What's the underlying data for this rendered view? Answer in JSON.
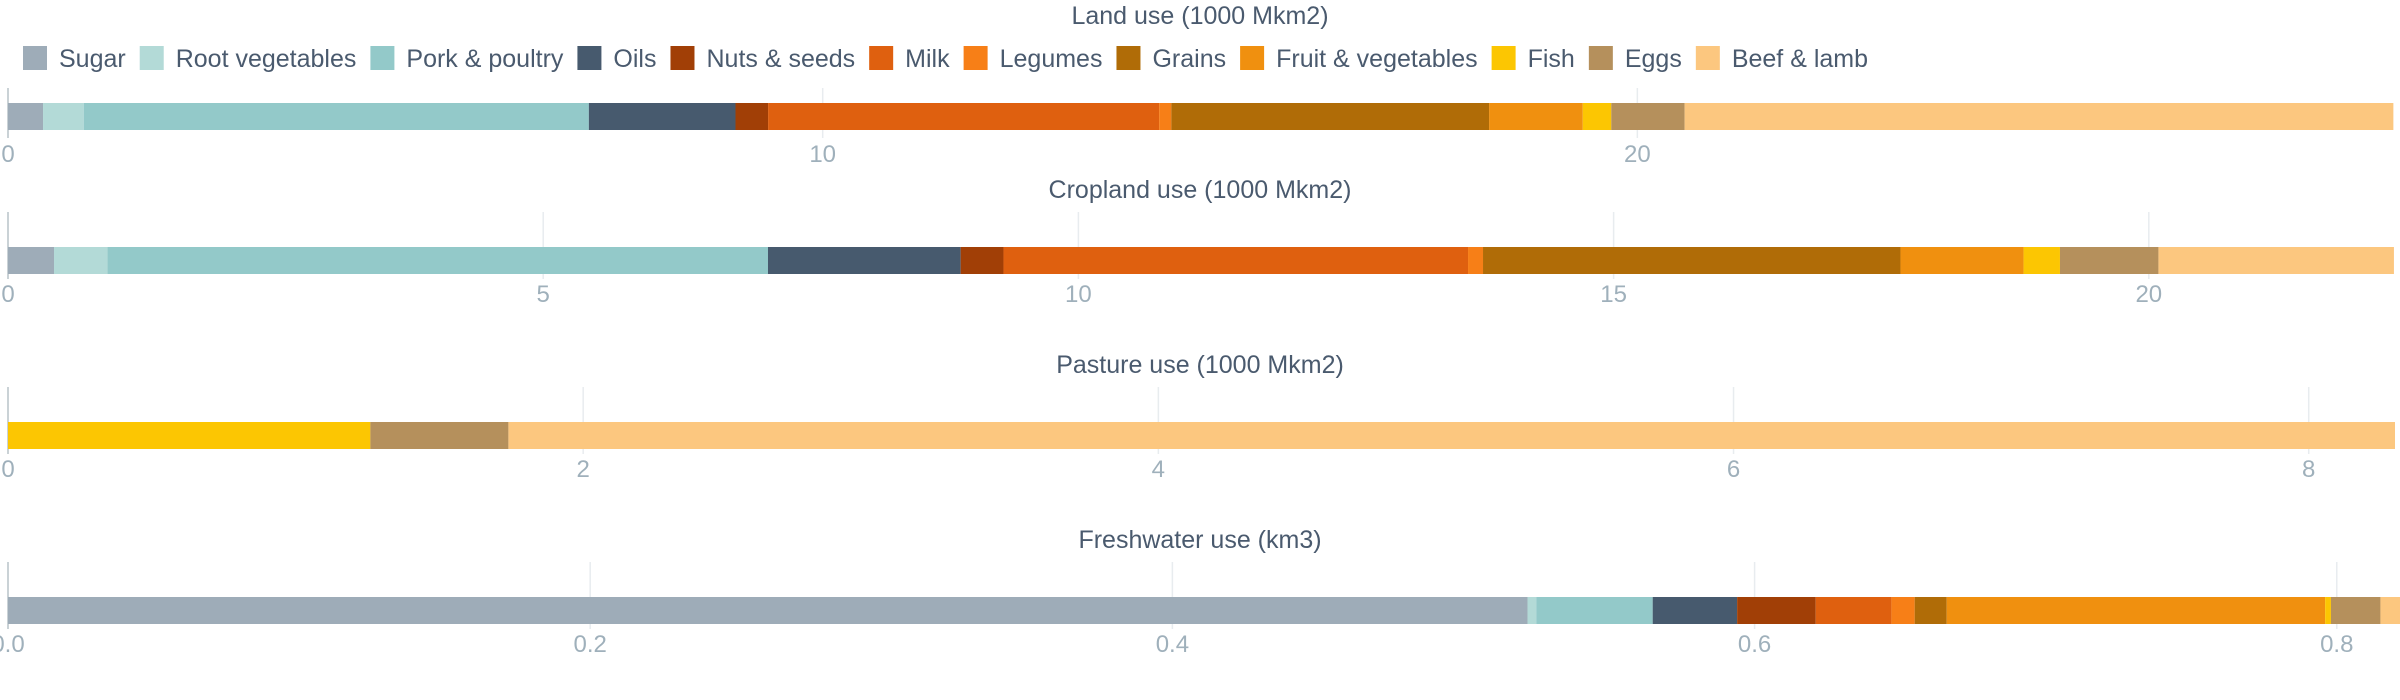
{
  "chart_data": {
    "type": "bar",
    "orientation": "horizontal-stacked",
    "legend": {
      "placement": "top-left",
      "entries": [
        {
          "name": "Sugar",
          "color": "#9eacb8"
        },
        {
          "name": "Root vegetables",
          "color": "#b3dad7"
        },
        {
          "name": "Pork & poultry",
          "color": "#93c9c9"
        },
        {
          "name": "Oils",
          "color": "#475a6e"
        },
        {
          "name": "Nuts & seeds",
          "color": "#a13f06"
        },
        {
          "name": "Milk",
          "color": "#df600f"
        },
        {
          "name": "Legumes",
          "color": "#f77f17"
        },
        {
          "name": "Grains",
          "color": "#b06c07"
        },
        {
          "name": "Fruit & vegetables",
          "color": "#f0900f"
        },
        {
          "name": "Fish",
          "color": "#fcc602"
        },
        {
          "name": "Eggs",
          "color": "#b5905c"
        },
        {
          "name": "Beef & lamb",
          "color": "#fcc77f"
        }
      ]
    },
    "panels": [
      {
        "title": "Land use (1000 Mkm2)",
        "xlim": [
          0,
          29.3
        ],
        "ticks": [
          {
            "value": 0,
            "label": "0"
          },
          {
            "value": 10,
            "label": "10"
          },
          {
            "value": 20,
            "label": "20"
          }
        ],
        "grid": true,
        "values": [
          0.43,
          0.5,
          6.2,
          1.8,
          0.4,
          4.8,
          0.15,
          3.9,
          1.15,
          0.35,
          0.9,
          8.7
        ]
      },
      {
        "title": "Cropland use (1000 Mkm2)",
        "xlim": [
          0,
          22.3
        ],
        "ticks": [
          {
            "value": 0,
            "label": "0"
          },
          {
            "value": 5,
            "label": "5"
          },
          {
            "value": 10,
            "label": "10"
          },
          {
            "value": 15,
            "label": "15"
          },
          {
            "value": 20,
            "label": "20"
          }
        ],
        "grid": true,
        "values": [
          0.43,
          0.5,
          6.17,
          1.8,
          0.4,
          4.34,
          0.14,
          3.9,
          1.15,
          0.34,
          0.92,
          2.2
        ]
      },
      {
        "title": "Pasture use (1000 Mkm2)",
        "xlim": [
          0,
          8.3
        ],
        "ticks": [
          {
            "value": 0,
            "label": "0"
          },
          {
            "value": 2,
            "label": "2"
          },
          {
            "value": 4,
            "label": "4"
          },
          {
            "value": 6,
            "label": "6"
          },
          {
            "value": 8,
            "label": "8"
          }
        ],
        "grid": true,
        "values": [
          0,
          0,
          0,
          0,
          0,
          0,
          0,
          0,
          0,
          1.26,
          0.48,
          6.56
        ]
      },
      {
        "title": "Freshwater use (km3)",
        "xlim": [
          0,
          0.82
        ],
        "ticks": [
          {
            "value": 0,
            "label": "0.0"
          },
          {
            "value": 0.2,
            "label": "0.2"
          },
          {
            "value": 0.4,
            "label": "0.4"
          },
          {
            "value": 0.6,
            "label": "0.6"
          },
          {
            "value": 0.8,
            "label": "0.8"
          }
        ],
        "grid": true,
        "values": [
          0.522,
          0.003,
          0.04,
          0.029,
          0.027,
          0.026,
          0.008,
          0.011,
          0.13,
          0.002,
          0.017,
          0.007
        ]
      }
    ]
  }
}
